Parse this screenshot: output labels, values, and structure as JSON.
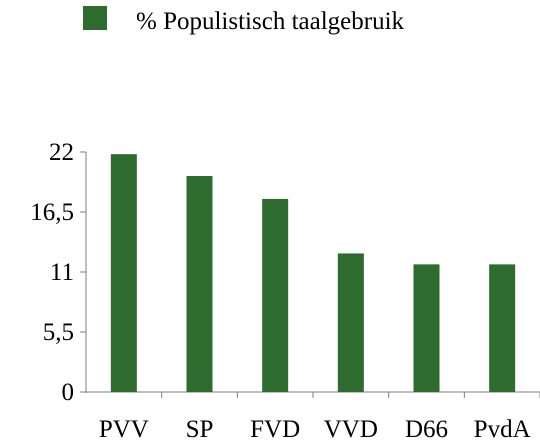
{
  "chart_data": {
    "type": "bar",
    "categories": [
      "PVV",
      "SP",
      "FVD",
      "VVD",
      "D66",
      "PvdA"
    ],
    "series": [
      {
        "name": "% Populistisch taalgebruik",
        "values": [
          21.8,
          19.8,
          17.7,
          12.7,
          11.7,
          11.7
        ],
        "color": "#2e6b2e"
      }
    ],
    "yticks": [
      "0",
      "5,5",
      "11",
      "16,5",
      "22"
    ],
    "ytick_values": [
      0,
      5.5,
      11,
      16.5,
      22
    ],
    "ylim": [
      0,
      22
    ],
    "legend_position": "top",
    "grid": false
  }
}
